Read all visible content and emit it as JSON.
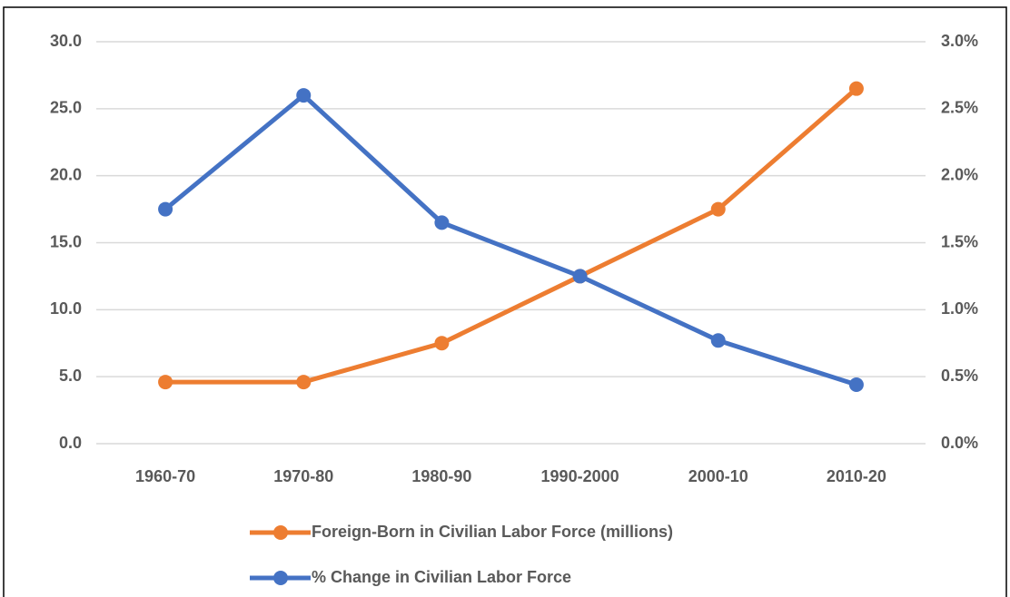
{
  "chart_data": {
    "type": "line",
    "categories": [
      "1960-70",
      "1970-80",
      "1980-90",
      "1990-2000",
      "2000-10",
      "2010-20"
    ],
    "series": [
      {
        "name": "Foreign-Born in Civilian Labor Force (millions)",
        "color": "#ED7D31",
        "values": [
          4.6,
          4.6,
          7.5,
          12.5,
          17.5,
          26.5
        ]
      },
      {
        "name": "% Change in Civilian Labor Force",
        "color": "#4472C4",
        "axis": "y2",
        "values": [
          1.75,
          2.6,
          1.65,
          1.25,
          0.77,
          0.44
        ]
      }
    ],
    "ylim": [
      0,
      30
    ],
    "yticks": [
      {
        "value": 0,
        "label": "0.0"
      },
      {
        "value": 5,
        "label": "5.0"
      },
      {
        "value": 10,
        "label": "10.0"
      },
      {
        "value": 15,
        "label": "15.0"
      },
      {
        "value": 20,
        "label": "20.0"
      },
      {
        "value": 25,
        "label": "25.0"
      },
      {
        "value": 30,
        "label": "30.0"
      }
    ],
    "y2lim": [
      0,
      3
    ],
    "y2ticks": [
      {
        "value": 0,
        "label": "0.0%"
      },
      {
        "value": 0.5,
        "label": "0.5%"
      },
      {
        "value": 1,
        "label": "1.0%"
      },
      {
        "value": 1.5,
        "label": "1.5%"
      },
      {
        "value": 2,
        "label": "2.0%"
      },
      {
        "value": 2.5,
        "label": "2.5%"
      },
      {
        "value": 3,
        "label": "3.0%"
      }
    ],
    "grid": true,
    "legend": "bottom"
  }
}
